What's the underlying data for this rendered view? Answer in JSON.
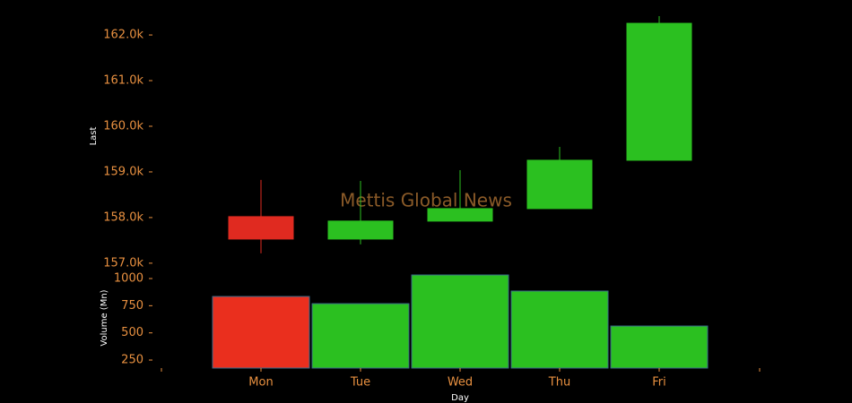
{
  "chart_data": {
    "type": "candlestick",
    "watermark": "Mettis Global News",
    "xlabel": "Day",
    "ylabel": "Last",
    "y2label": "Volume (Mn)",
    "categories": [
      "Mon",
      "Tue",
      "Wed",
      "Thu",
      "Fri"
    ],
    "open": [
      158020,
      157529,
      157922,
      158196,
      159255
    ],
    "high": [
      158824,
      158804,
      159039,
      159549,
      162412
    ],
    "low": [
      157216,
      157412,
      157922,
      158196,
      159255
    ],
    "close": [
      157529,
      157922,
      158196,
      159255,
      162255
    ],
    "volume": [
      835,
      769,
      1033,
      885,
      563
    ],
    "up_color": "#2bc020",
    "down_color": "#e02a20",
    "volume_down_color": "#ea2f1e",
    "ylim": [
      156880,
      162570
    ],
    "yticks": [
      {
        "value": 157000,
        "label": "157.0k"
      },
      {
        "value": 158000,
        "label": "158.0k"
      },
      {
        "value": 159000,
        "label": "159.0k"
      },
      {
        "value": 160000,
        "label": "160.0k"
      },
      {
        "value": 161000,
        "label": "161.0k"
      },
      {
        "value": 162000,
        "label": "162.0k"
      }
    ],
    "y2lim": [
      176,
      1058
    ],
    "y2ticks": [
      250,
      500,
      750,
      1000
    ]
  }
}
